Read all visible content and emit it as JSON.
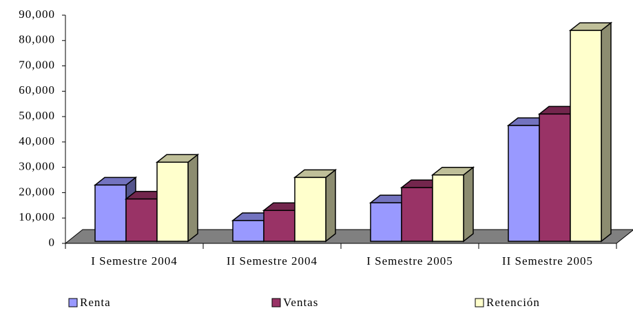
{
  "chart_data": {
    "type": "bar3d",
    "categories": [
      "I Semestre 2004",
      "II Semestre 2004",
      "I Semestre 2005",
      "II Semestre 2005"
    ],
    "series": [
      {
        "name": "Renta",
        "color": "#9999ff",
        "values": [
          23000,
          9000,
          16000,
          46500
        ]
      },
      {
        "name": "Ventas",
        "color": "#993366",
        "values": [
          17500,
          13000,
          22000,
          51000
        ]
      },
      {
        "name": "Retención",
        "color": "#ffffcc",
        "values": [
          32000,
          26000,
          27000,
          84000
        ]
      }
    ],
    "ylim": [
      0,
      90000
    ],
    "yticks": [
      0,
      {
        "value": 10000,
        "label": "10,000"
      },
      {
        "value": 20000,
        "label": "20,000"
      },
      {
        "value": 30000,
        "label": "30,000"
      },
      {
        "value": 40000,
        "label": "40,000"
      },
      {
        "value": 50000,
        "label": "50,000"
      },
      {
        "value": 60000,
        "label": "60,000"
      },
      {
        "value": 70000,
        "label": "70,000"
      },
      {
        "value": 80000,
        "label": "80,000"
      },
      {
        "value": 90000,
        "label": "90,000"
      }
    ],
    "legend": "bottom"
  }
}
